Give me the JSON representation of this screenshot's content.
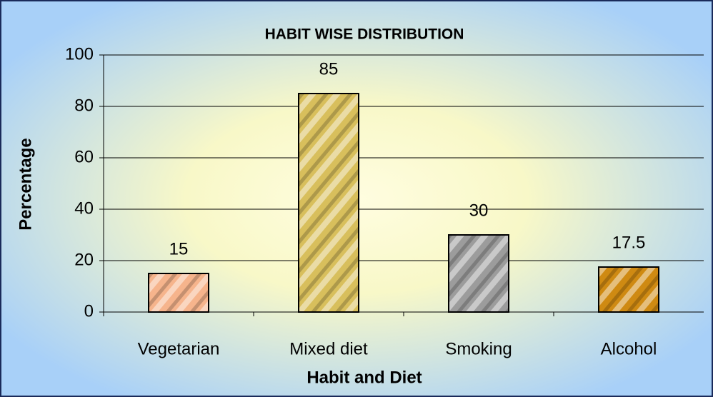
{
  "chart_data": {
    "type": "bar",
    "title": "HABIT WISE DISTRIBUTION",
    "x_label": "Habit and Diet",
    "y_label": "Percentage",
    "categories": [
      "Vegetarian",
      "Mixed diet",
      "Smoking",
      "Alcohol"
    ],
    "values": [
      15,
      85,
      30,
      17.5
    ],
    "colors": [
      "#f6b48c",
      "#d8bf5c",
      "#9c9c9c",
      "#cf8a12"
    ],
    "ylim": [
      0,
      100
    ],
    "yticks": [
      0,
      20,
      40,
      60,
      80,
      100
    ],
    "grid": true
  }
}
